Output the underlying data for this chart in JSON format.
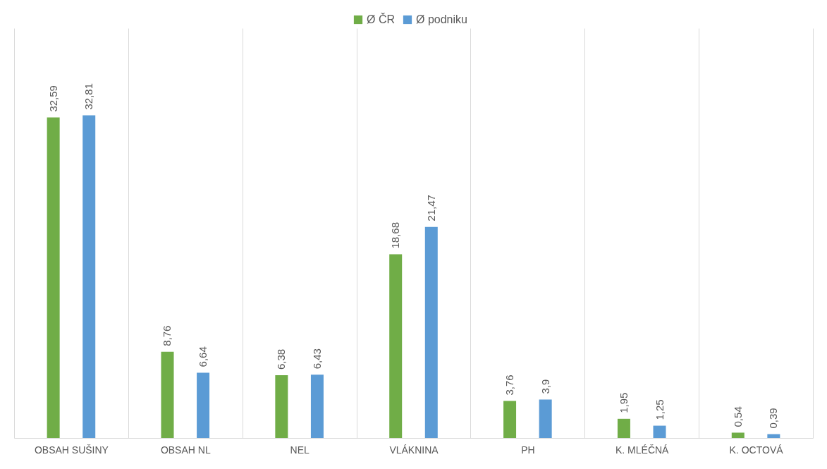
{
  "chart_data": {
    "type": "bar",
    "categories": [
      "OBSAH SUŠINY",
      "OBSAH NL",
      "NEL",
      "VLÁKNINA",
      "PH",
      "K. MLÉČNÁ",
      "K. OCTOVÁ"
    ],
    "series": [
      {
        "name": "Ø ČR",
        "color": "#70ad47",
        "values": [
          32.59,
          8.76,
          6.38,
          18.68,
          3.76,
          1.95,
          0.54
        ],
        "value_labels": [
          "32,59",
          "8,76",
          "6,38",
          "18,68",
          "3,76",
          "1,95",
          "0,54"
        ]
      },
      {
        "name": "Ø podniku",
        "color": "#5b9bd5",
        "values": [
          32.81,
          6.64,
          6.43,
          21.47,
          3.9,
          1.25,
          0.39
        ],
        "value_labels": [
          "32,81",
          "6,64",
          "6,43",
          "21,47",
          "3,9",
          "1,25",
          "0,39"
        ]
      }
    ],
    "grid": "x",
    "legend": "top"
  }
}
